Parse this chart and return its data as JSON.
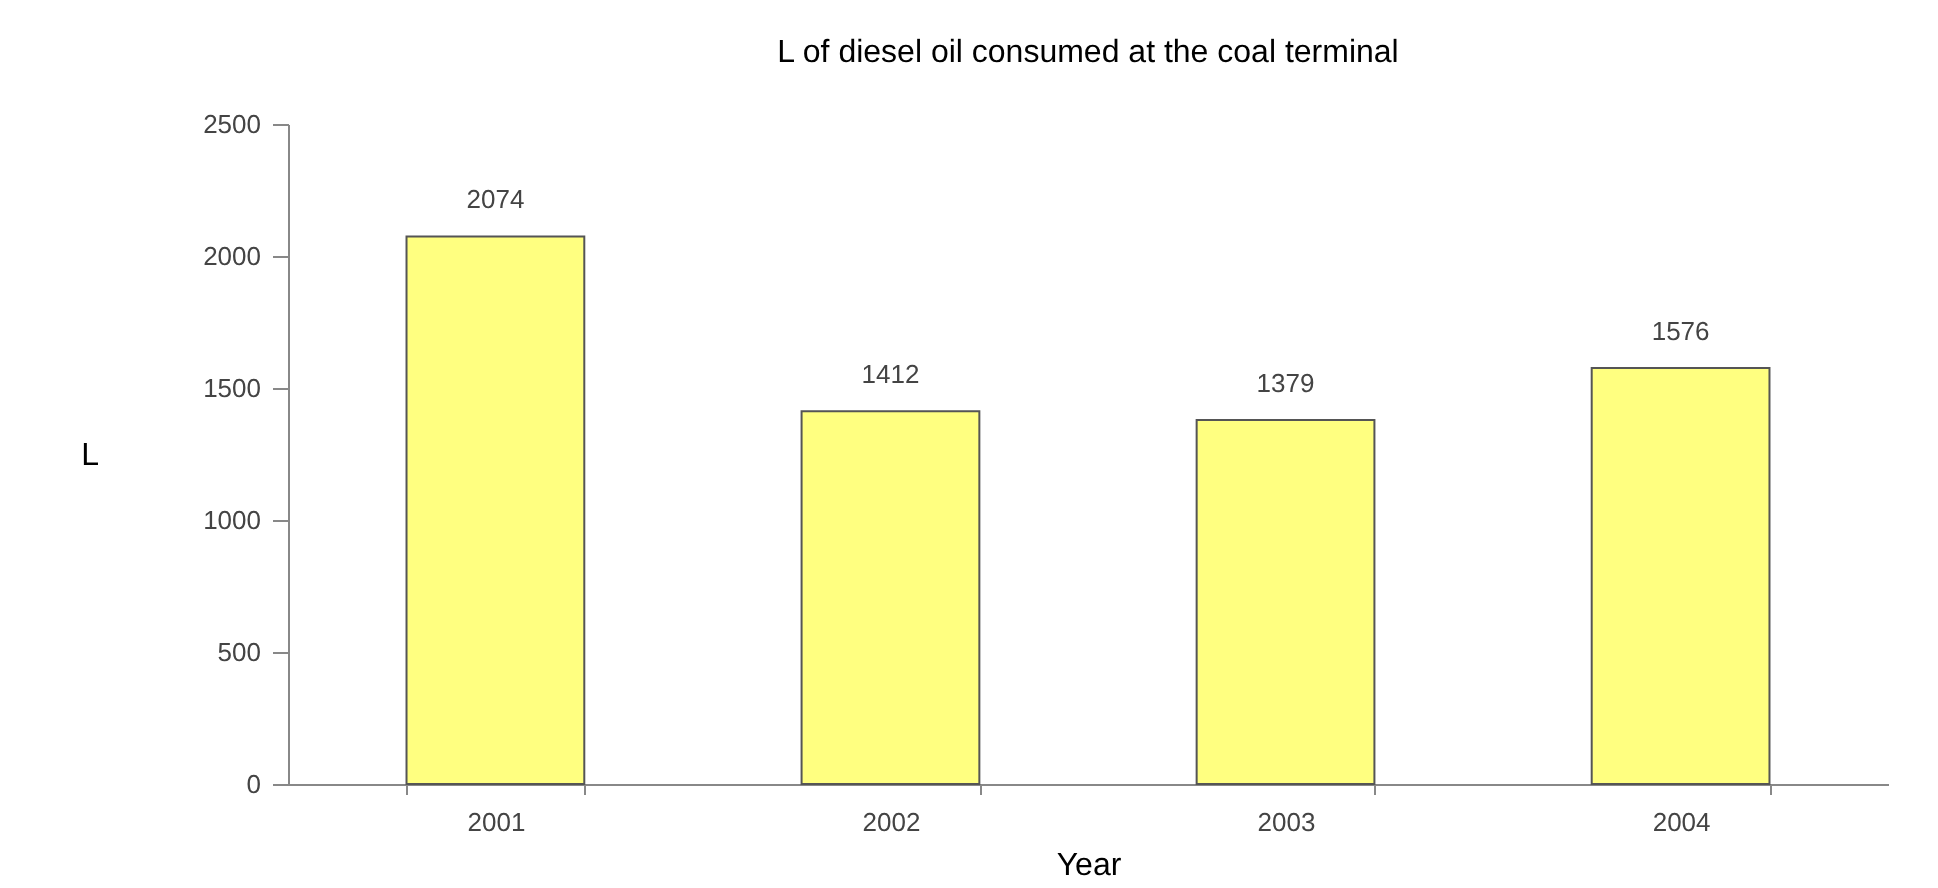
{
  "chart_data": {
    "type": "bar",
    "title": "L of diesel oil consumed at the coal terminal",
    "xlabel": "Year",
    "ylabel": "L",
    "categories": [
      "2001",
      "2002",
      "2003",
      "2004"
    ],
    "values": [
      2074,
      1412,
      1379,
      1576
    ],
    "color": "#ffff80",
    "ylim": [
      0,
      2500
    ],
    "yticks": [
      0,
      500,
      1000,
      1500,
      2000,
      2500
    ],
    "grid": false,
    "data_labels": true
  }
}
